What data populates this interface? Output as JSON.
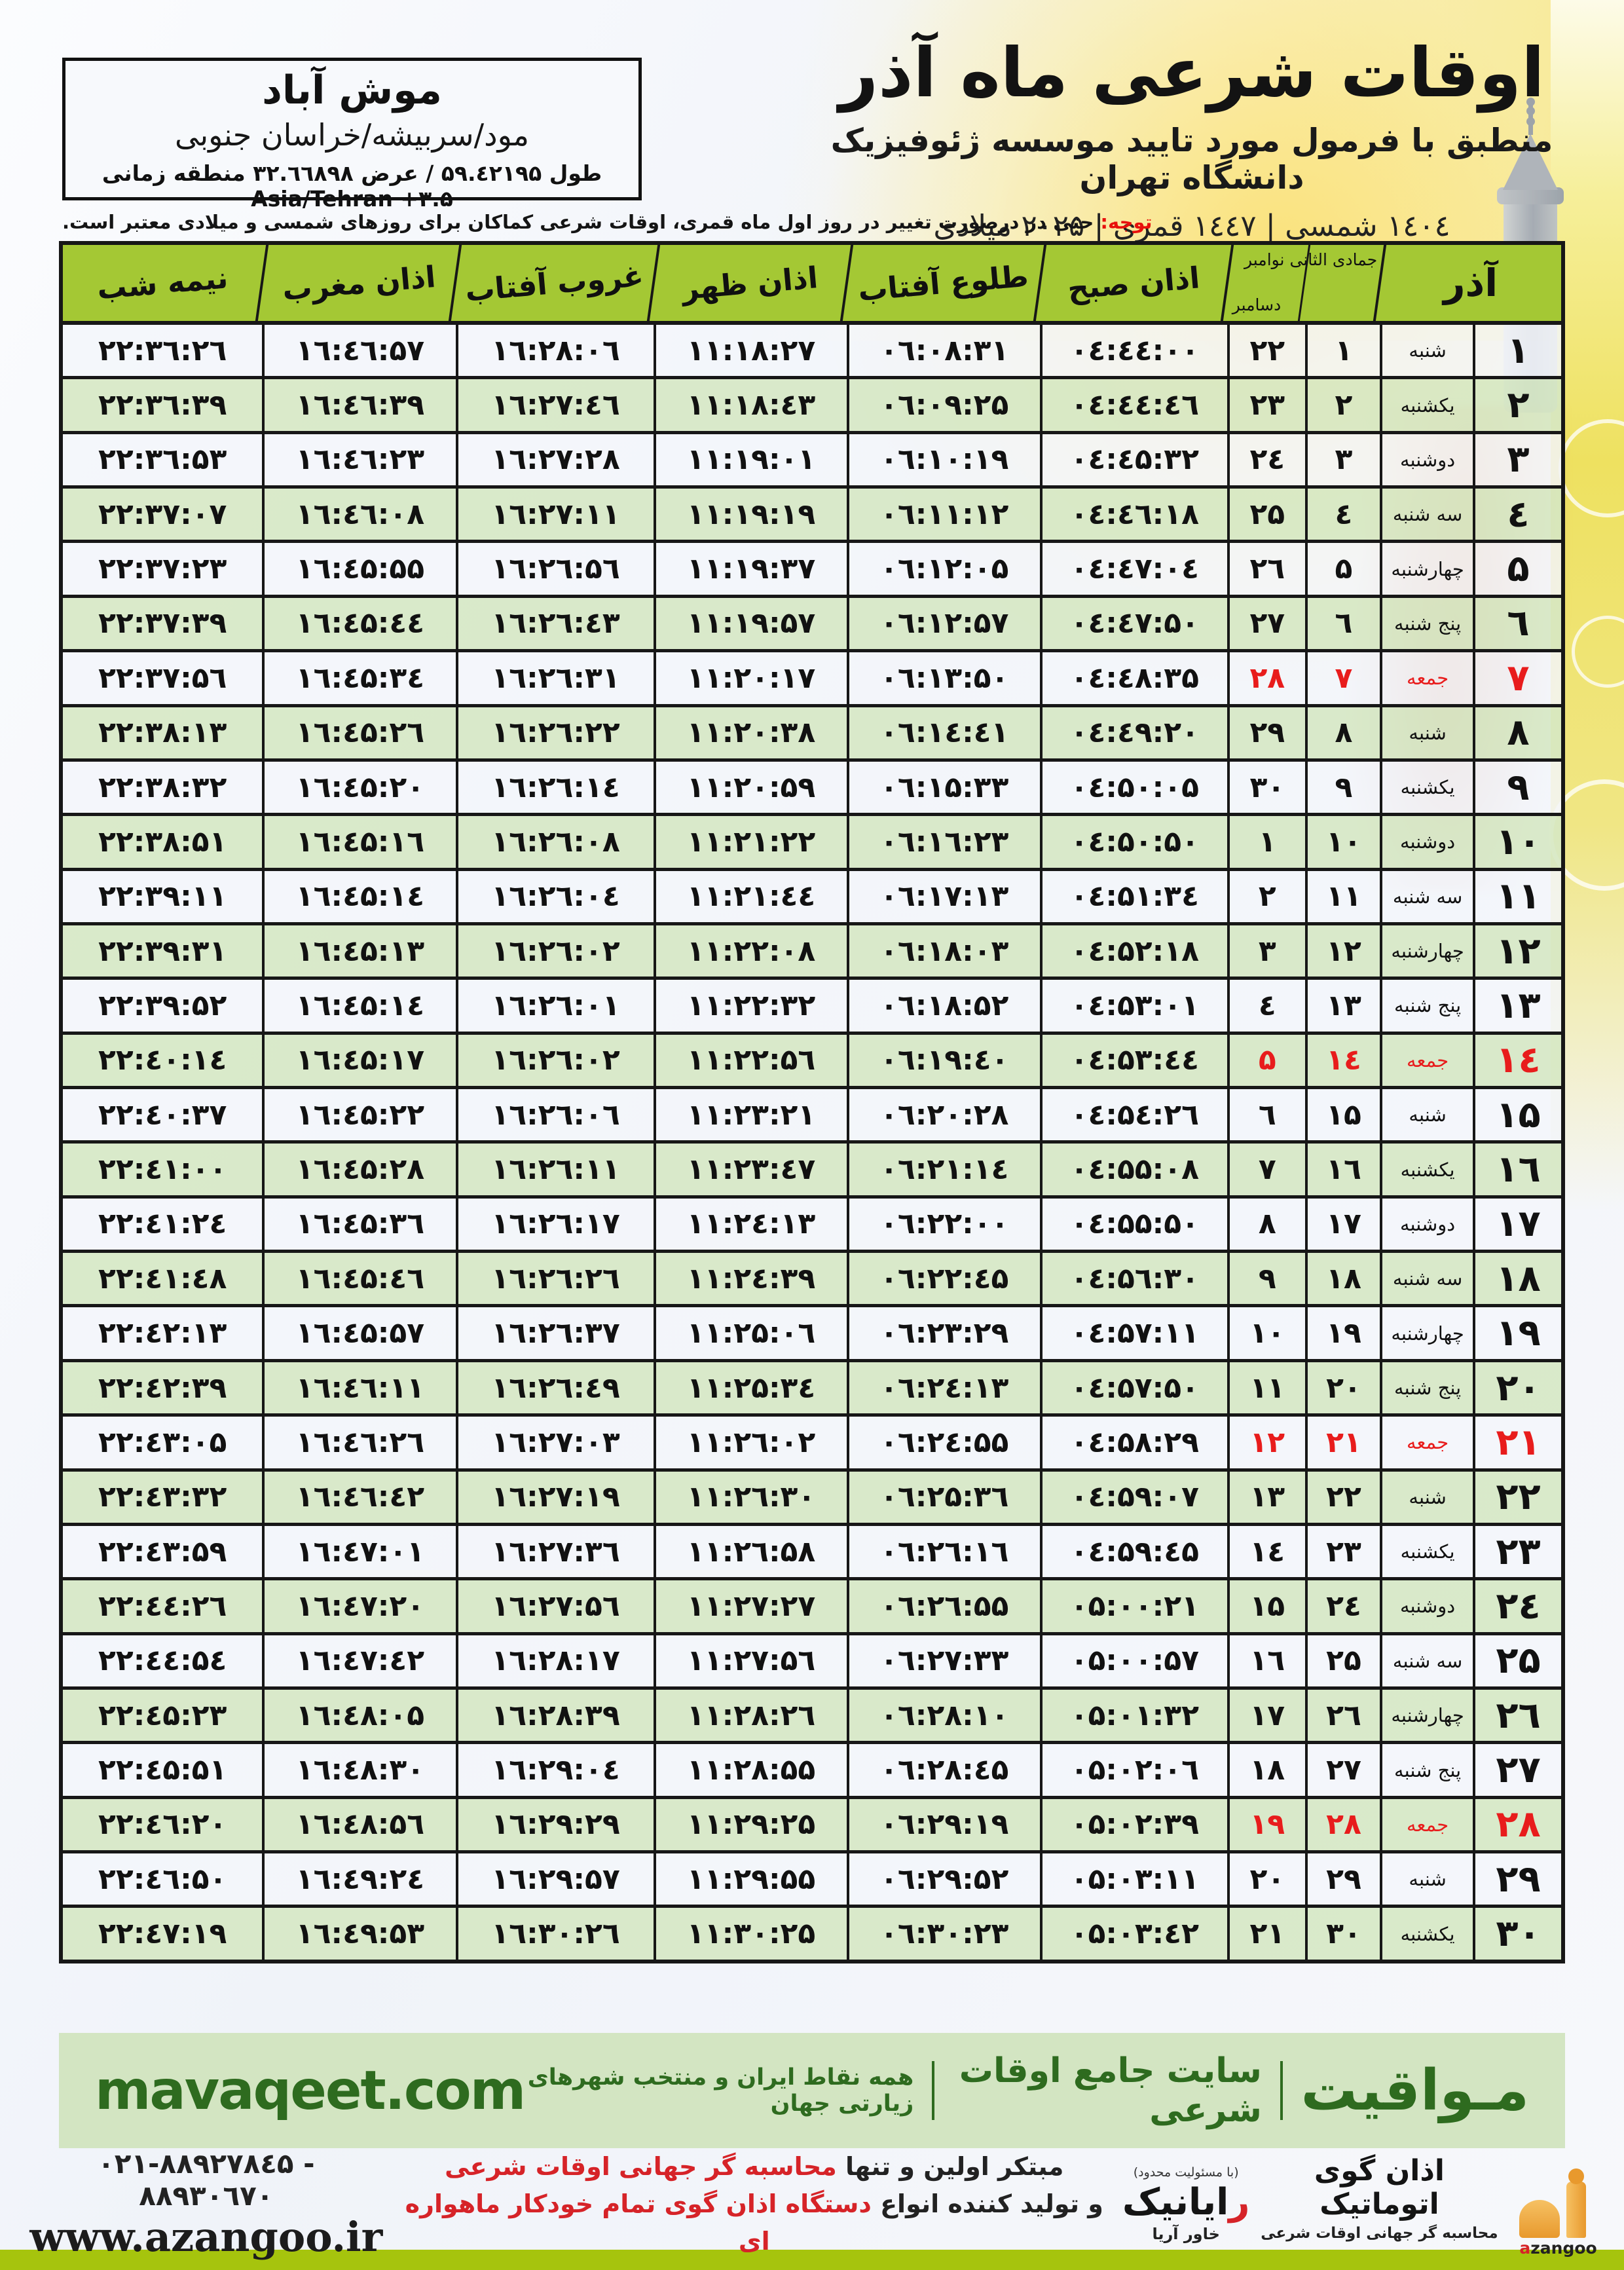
{
  "colors": {
    "header_green": "#a4c834",
    "row_green": "#d6e8c2",
    "row_light": "#f3f6fa",
    "friday_red": "#e81c1c",
    "notice_red": "#e8100c",
    "border_black": "#171717",
    "mavaqeet_bg": "#d3e5c2",
    "mavaqeet_green": "#2e6b1f",
    "bottom_bar": "#a6c40d",
    "slogan_red": "#d62328",
    "azangoo_orange": "#f0a03a"
  },
  "header": {
    "title": "اوقات شرعی ماه آذر",
    "subtitle": "منطبق با فرمول مورد تایید موسسه ژئوفیزیک دانشگاه تهران",
    "dates": "۱٤٠٤ شمسی | ۱٤٤۷ قمری | ۲٠۲۵ میلادی"
  },
  "location": {
    "city": "موش آباد",
    "region": "مود/سربیشه/خراسان جنوبی",
    "coords": "طول ۵۹.٤۲۱۹۵ / عرض ۳۲.٦٦۸۹۸ منطقه زمانی",
    "timezone": "Asia/Tehran +۳.۵"
  },
  "notice": {
    "label": "توجه:",
    "text": "حتی در درصورت تغییر در روز اول ماه قمری، اوقات شرعی کماکان برای روزهای شمسی و میلادی معتبر است."
  },
  "table": {
    "headers": {
      "azar": "آذر",
      "months_line1": "جمادی الثانی نوامبر",
      "months_line2": "دسامبر",
      "sobh": "اذان صبح",
      "tolu": "طلوع آفتاب",
      "zohr": "اذان ظهر",
      "ghorub": "غروب آفتاب",
      "maghreb": "اذان مغرب",
      "nimeshab": "نیمه شب"
    },
    "rows": [
      {
        "azar": "۱",
        "weekday": "شنبه",
        "hijri": "۱",
        "greg": "۲۲",
        "sobh": "٠٤:٤٤:٠٠",
        "tolu": "٠٦:٠۸:۳۱",
        "zohr": "۱۱:۱۸:۲۷",
        "ghorub": "۱٦:۲۸:٠٦",
        "maghreb": "۱٦:٤٦:۵۷",
        "nimeshab": "۲۲:۳٦:۲٦"
      },
      {
        "azar": "۲",
        "weekday": "یکشنبه",
        "hijri": "۲",
        "greg": "۲۳",
        "sobh": "٠٤:٤٤:٤٦",
        "tolu": "٠٦:٠۹:۲۵",
        "zohr": "۱۱:۱۸:٤۳",
        "ghorub": "۱٦:۲۷:٤٦",
        "maghreb": "۱٦:٤٦:۳۹",
        "nimeshab": "۲۲:۳٦:۳۹"
      },
      {
        "azar": "۳",
        "weekday": "دوشنبه",
        "hijri": "۳",
        "greg": "۲٤",
        "sobh": "٠٤:٤۵:۳۲",
        "tolu": "٠٦:۱٠:۱۹",
        "zohr": "۱۱:۱۹:٠۱",
        "ghorub": "۱٦:۲۷:۲۸",
        "maghreb": "۱٦:٤٦:۲۳",
        "nimeshab": "۲۲:۳٦:۵۳"
      },
      {
        "azar": "٤",
        "weekday": "سه شنبه",
        "hijri": "٤",
        "greg": "۲۵",
        "sobh": "٠٤:٤٦:۱۸",
        "tolu": "٠٦:۱۱:۱۲",
        "zohr": "۱۱:۱۹:۱۹",
        "ghorub": "۱٦:۲۷:۱۱",
        "maghreb": "۱٦:٤٦:٠۸",
        "nimeshab": "۲۲:۳۷:٠۷"
      },
      {
        "azar": "۵",
        "weekday": "چهارشنبه",
        "hijri": "۵",
        "greg": "۲٦",
        "sobh": "٠٤:٤۷:٠٤",
        "tolu": "٠٦:۱۲:٠۵",
        "zohr": "۱۱:۱۹:۳۷",
        "ghorub": "۱٦:۲٦:۵٦",
        "maghreb": "۱٦:٤۵:۵۵",
        "nimeshab": "۲۲:۳۷:۲۳"
      },
      {
        "azar": "٦",
        "weekday": "پنج شنبه",
        "hijri": "٦",
        "greg": "۲۷",
        "sobh": "٠٤:٤۷:۵٠",
        "tolu": "٠٦:۱۲:۵۷",
        "zohr": "۱۱:۱۹:۵۷",
        "ghorub": "۱٦:۲٦:٤۳",
        "maghreb": "۱٦:٤۵:٤٤",
        "nimeshab": "۲۲:۳۷:۳۹"
      },
      {
        "azar": "۷",
        "weekday": "جمعه",
        "hijri": "۷",
        "greg": "۲۸",
        "sobh": "٠٤:٤۸:۳۵",
        "tolu": "٠٦:۱۳:۵٠",
        "zohr": "۱۱:۲٠:۱۷",
        "ghorub": "۱٦:۲٦:۳۱",
        "maghreb": "۱٦:٤۵:۳٤",
        "nimeshab": "۲۲:۳۷:۵٦",
        "friday": true
      },
      {
        "azar": "۸",
        "weekday": "شنبه",
        "hijri": "۸",
        "greg": "۲۹",
        "sobh": "٠٤:٤۹:۲٠",
        "tolu": "٠٦:۱٤:٤۱",
        "zohr": "۱۱:۲٠:۳۸",
        "ghorub": "۱٦:۲٦:۲۲",
        "maghreb": "۱٦:٤۵:۲٦",
        "nimeshab": "۲۲:۳۸:۱۳"
      },
      {
        "azar": "۹",
        "weekday": "یکشنبه",
        "hijri": "۹",
        "greg": "۳٠",
        "sobh": "٠٤:۵٠:٠۵",
        "tolu": "٠٦:۱۵:۳۳",
        "zohr": "۱۱:۲٠:۵۹",
        "ghorub": "۱٦:۲٦:۱٤",
        "maghreb": "۱٦:٤۵:۲٠",
        "nimeshab": "۲۲:۳۸:۳۲"
      },
      {
        "azar": "۱٠",
        "weekday": "دوشنبه",
        "hijri": "۱٠",
        "greg": "۱",
        "sobh": "٠٤:۵٠:۵٠",
        "tolu": "٠٦:۱٦:۲۳",
        "zohr": "۱۱:۲۱:۲۲",
        "ghorub": "۱٦:۲٦:٠۸",
        "maghreb": "۱٦:٤۵:۱٦",
        "nimeshab": "۲۲:۳۸:۵۱"
      },
      {
        "azar": "۱۱",
        "weekday": "سه شنبه",
        "hijri": "۱۱",
        "greg": "۲",
        "sobh": "٠٤:۵۱:۳٤",
        "tolu": "٠٦:۱۷:۱۳",
        "zohr": "۱۱:۲۱:٤٤",
        "ghorub": "۱٦:۲٦:٠٤",
        "maghreb": "۱٦:٤۵:۱٤",
        "nimeshab": "۲۲:۳۹:۱۱"
      },
      {
        "azar": "۱۲",
        "weekday": "چهارشنبه",
        "hijri": "۱۲",
        "greg": "۳",
        "sobh": "٠٤:۵۲:۱۸",
        "tolu": "٠٦:۱۸:٠۳",
        "zohr": "۱۱:۲۲:٠۸",
        "ghorub": "۱٦:۲٦:٠۲",
        "maghreb": "۱٦:٤۵:۱۳",
        "nimeshab": "۲۲:۳۹:۳۱"
      },
      {
        "azar": "۱۳",
        "weekday": "پنج شنبه",
        "hijri": "۱۳",
        "greg": "٤",
        "sobh": "٠٤:۵۳:٠۱",
        "tolu": "٠٦:۱۸:۵۲",
        "zohr": "۱۱:۲۲:۳۲",
        "ghorub": "۱٦:۲٦:٠۱",
        "maghreb": "۱٦:٤۵:۱٤",
        "nimeshab": "۲۲:۳۹:۵۲"
      },
      {
        "azar": "۱٤",
        "weekday": "جمعه",
        "hijri": "۱٤",
        "greg": "۵",
        "sobh": "٠٤:۵۳:٤٤",
        "tolu": "٠٦:۱۹:٤٠",
        "zohr": "۱۱:۲۲:۵٦",
        "ghorub": "۱٦:۲٦:٠۲",
        "maghreb": "۱٦:٤۵:۱۷",
        "nimeshab": "۲۲:٤٠:۱٤",
        "friday": true
      },
      {
        "azar": "۱۵",
        "weekday": "شنبه",
        "hijri": "۱۵",
        "greg": "٦",
        "sobh": "٠٤:۵٤:۲٦",
        "tolu": "٠٦:۲٠:۲۸",
        "zohr": "۱۱:۲۳:۲۱",
        "ghorub": "۱٦:۲٦:٠٦",
        "maghreb": "۱٦:٤۵:۲۲",
        "nimeshab": "۲۲:٤٠:۳۷"
      },
      {
        "azar": "۱٦",
        "weekday": "یکشنبه",
        "hijri": "۱٦",
        "greg": "۷",
        "sobh": "٠٤:۵۵:٠۸",
        "tolu": "٠٦:۲۱:۱٤",
        "zohr": "۱۱:۲۳:٤۷",
        "ghorub": "۱٦:۲٦:۱۱",
        "maghreb": "۱٦:٤۵:۲۸",
        "nimeshab": "۲۲:٤۱:٠٠"
      },
      {
        "azar": "۱۷",
        "weekday": "دوشنبه",
        "hijri": "۱۷",
        "greg": "۸",
        "sobh": "٠٤:۵۵:۵٠",
        "tolu": "٠٦:۲۲:٠٠",
        "zohr": "۱۱:۲٤:۱۳",
        "ghorub": "۱٦:۲٦:۱۷",
        "maghreb": "۱٦:٤۵:۳٦",
        "nimeshab": "۲۲:٤۱:۲٤"
      },
      {
        "azar": "۱۸",
        "weekday": "سه شنبه",
        "hijri": "۱۸",
        "greg": "۹",
        "sobh": "٠٤:۵٦:۳٠",
        "tolu": "٠٦:۲۲:٤۵",
        "zohr": "۱۱:۲٤:۳۹",
        "ghorub": "۱٦:۲٦:۲٦",
        "maghreb": "۱٦:٤۵:٤٦",
        "nimeshab": "۲۲:٤۱:٤۸"
      },
      {
        "azar": "۱۹",
        "weekday": "چهارشنبه",
        "hijri": "۱۹",
        "greg": "۱٠",
        "sobh": "٠٤:۵۷:۱۱",
        "tolu": "٠٦:۲۳:۲۹",
        "zohr": "۱۱:۲۵:٠٦",
        "ghorub": "۱٦:۲٦:۳۷",
        "maghreb": "۱٦:٤۵:۵۷",
        "nimeshab": "۲۲:٤۲:۱۳"
      },
      {
        "azar": "۲٠",
        "weekday": "پنج شنبه",
        "hijri": "۲٠",
        "greg": "۱۱",
        "sobh": "٠٤:۵۷:۵٠",
        "tolu": "٠٦:۲٤:۱۳",
        "zohr": "۱۱:۲۵:۳٤",
        "ghorub": "۱٦:۲٦:٤۹",
        "maghreb": "۱٦:٤٦:۱۱",
        "nimeshab": "۲۲:٤۲:۳۹"
      },
      {
        "azar": "۲۱",
        "weekday": "جمعه",
        "hijri": "۲۱",
        "greg": "۱۲",
        "sobh": "٠٤:۵۸:۲۹",
        "tolu": "٠٦:۲٤:۵۵",
        "zohr": "۱۱:۲٦:٠۲",
        "ghorub": "۱٦:۲۷:٠۳",
        "maghreb": "۱٦:٤٦:۲٦",
        "nimeshab": "۲۲:٤۳:٠۵",
        "friday": true
      },
      {
        "azar": "۲۲",
        "weekday": "شنبه",
        "hijri": "۲۲",
        "greg": "۱۳",
        "sobh": "٠٤:۵۹:٠۷",
        "tolu": "٠٦:۲۵:۳٦",
        "zohr": "۱۱:۲٦:۳٠",
        "ghorub": "۱٦:۲۷:۱۹",
        "maghreb": "۱٦:٤٦:٤۲",
        "nimeshab": "۲۲:٤۳:۳۲"
      },
      {
        "azar": "۲۳",
        "weekday": "یکشنبه",
        "hijri": "۲۳",
        "greg": "۱٤",
        "sobh": "٠٤:۵۹:٤۵",
        "tolu": "٠٦:۲٦:۱٦",
        "zohr": "۱۱:۲٦:۵۸",
        "ghorub": "۱٦:۲۷:۳٦",
        "maghreb": "۱٦:٤۷:٠۱",
        "nimeshab": "۲۲:٤۳:۵۹"
      },
      {
        "azar": "۲٤",
        "weekday": "دوشنبه",
        "hijri": "۲٤",
        "greg": "۱۵",
        "sobh": "٠۵:٠٠:۲۱",
        "tolu": "٠٦:۲٦:۵۵",
        "zohr": "۱۱:۲۷:۲۷",
        "ghorub": "۱٦:۲۷:۵٦",
        "maghreb": "۱٦:٤۷:۲٠",
        "nimeshab": "۲۲:٤٤:۲٦"
      },
      {
        "azar": "۲۵",
        "weekday": "سه شنبه",
        "hijri": "۲۵",
        "greg": "۱٦",
        "sobh": "٠۵:٠٠:۵۷",
        "tolu": "٠٦:۲۷:۳۳",
        "zohr": "۱۱:۲۷:۵٦",
        "ghorub": "۱٦:۲۸:۱۷",
        "maghreb": "۱٦:٤۷:٤۲",
        "nimeshab": "۲۲:٤٤:۵٤"
      },
      {
        "azar": "۲٦",
        "weekday": "چهارشنبه",
        "hijri": "۲٦",
        "greg": "۱۷",
        "sobh": "٠۵:٠۱:۳۲",
        "tolu": "٠٦:۲۸:۱٠",
        "zohr": "۱۱:۲۸:۲٦",
        "ghorub": "۱٦:۲۸:۳۹",
        "maghreb": "۱٦:٤۸:٠۵",
        "nimeshab": "۲۲:٤۵:۲۳"
      },
      {
        "azar": "۲۷",
        "weekday": "پنج شنبه",
        "hijri": "۲۷",
        "greg": "۱۸",
        "sobh": "٠۵:٠۲:٠٦",
        "tolu": "٠٦:۲۸:٤۵",
        "zohr": "۱۱:۲۸:۵۵",
        "ghorub": "۱٦:۲۹:٠٤",
        "maghreb": "۱٦:٤۸:۳٠",
        "nimeshab": "۲۲:٤۵:۵۱"
      },
      {
        "azar": "۲۸",
        "weekday": "جمعه",
        "hijri": "۲۸",
        "greg": "۱۹",
        "sobh": "٠۵:٠۲:۳۹",
        "tolu": "٠٦:۲۹:۱۹",
        "zohr": "۱۱:۲۹:۲۵",
        "ghorub": "۱٦:۲۹:۲۹",
        "maghreb": "۱٦:٤۸:۵٦",
        "nimeshab": "۲۲:٤٦:۲٠",
        "friday": true
      },
      {
        "azar": "۲۹",
        "weekday": "شنبه",
        "hijri": "۲۹",
        "greg": "۲٠",
        "sobh": "٠۵:٠۳:۱۱",
        "tolu": "٠٦:۲۹:۵۲",
        "zohr": "۱۱:۲۹:۵۵",
        "ghorub": "۱٦:۲۹:۵۷",
        "maghreb": "۱٦:٤۹:۲٤",
        "nimeshab": "۲۲:٤٦:۵٠"
      },
      {
        "azar": "۳٠",
        "weekday": "یکشنبه",
        "hijri": "۳٠",
        "greg": "۲۱",
        "sobh": "٠۵:٠۳:٤۲",
        "tolu": "٠٦:۳٠:۲۳",
        "zohr": "۱۱:۳٠:۲۵",
        "ghorub": "۱٦:۳٠:۲٦",
        "maghreb": "۱٦:٤۹:۵۳",
        "nimeshab": "۲۲:٤۷:۱۹"
      }
    ]
  },
  "mavaqeet": {
    "brand": "مـواقیت",
    "tagline1": "سایت جامع اوقات شرعی",
    "tagline2": "همه نقاط ایران و منتخب شهرهای زیارتی جهان",
    "url": "mavaqeet.com"
  },
  "footer": {
    "phone": "٠۲۱-۸۸۹۲۷۸٤۵ - ۸۸۹۳٠٦۷٠",
    "website": "www.azangoo.ir",
    "slogan1_black": "مبتکر اولین و تنها ",
    "slogan1_red": "محاسبه گر جهانی اوقات شرعی",
    "slogan2_black": "و تولید کننده انواع ",
    "slogan2_red": "دستگاه اذان گوی تمام خودکار ماهواره ای",
    "rayanik_note": "(با مسئولیت محدود)",
    "rayanik_name": "رایانیک",
    "rayanik_sub": "خاور آریا",
    "azangoo_name": "اذان گوی اتوماتیک",
    "azangoo_sub": "محاسبه گر جهانی اوقات شرعی",
    "azangoo_brand": "azangoo"
  }
}
